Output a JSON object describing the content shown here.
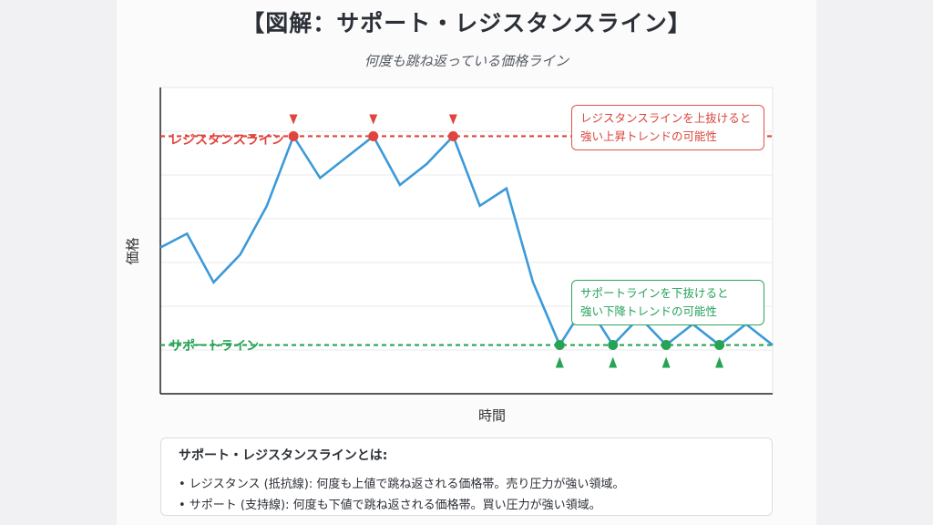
{
  "title": "【図解：サポート・レジスタンスライン】",
  "subtitle": "何度も跳ね返っている価格ライン",
  "chart_data": {
    "type": "line",
    "xlabel": "時間",
    "ylabel": "価格",
    "x": [
      0,
      1,
      2,
      3,
      4,
      5,
      6,
      7,
      8,
      9,
      10,
      11,
      12,
      13,
      14,
      15,
      16,
      17,
      18,
      19,
      20,
      21,
      22,
      23
    ],
    "series": [
      {
        "values": [
          50,
          54,
          40,
          48,
          62,
          82,
          70,
          76,
          82,
          68,
          74,
          82,
          62,
          67,
          40,
          22,
          34,
          22,
          30,
          22,
          28,
          22,
          28,
          22
        ]
      }
    ],
    "ylim": [
      8,
      96
    ],
    "resistance": {
      "label": "レジスタンスライン",
      "value": 82,
      "touches": [
        5,
        8,
        11
      ]
    },
    "support": {
      "label": "サポートライン",
      "value": 22,
      "touches": [
        15,
        17,
        19,
        21
      ]
    },
    "annotations": [
      {
        "text_lines": [
          "レジスタンスラインを上抜けると",
          "強い上昇トレンドの可能性"
        ],
        "color": "#d9453c"
      },
      {
        "text_lines": [
          "サポートラインを下抜けると",
          "強い下降トレンドの可能性"
        ],
        "color": "#25a15a"
      }
    ],
    "grid": "horizontal",
    "colors": {
      "line": "#3b9ad9",
      "resistance": "#e0443c",
      "support": "#27a356"
    }
  },
  "info_box": {
    "title": "サポート・レジスタンスラインとは:",
    "lines": [
      "• レジスタンス (抵抗線): 何度も上値で跳ね返される価格帯。売り圧力が強い領域。",
      "• サポート (支持線): 何度も下値で跳ね返される価格帯。買い圧力が強い領域。"
    ]
  }
}
